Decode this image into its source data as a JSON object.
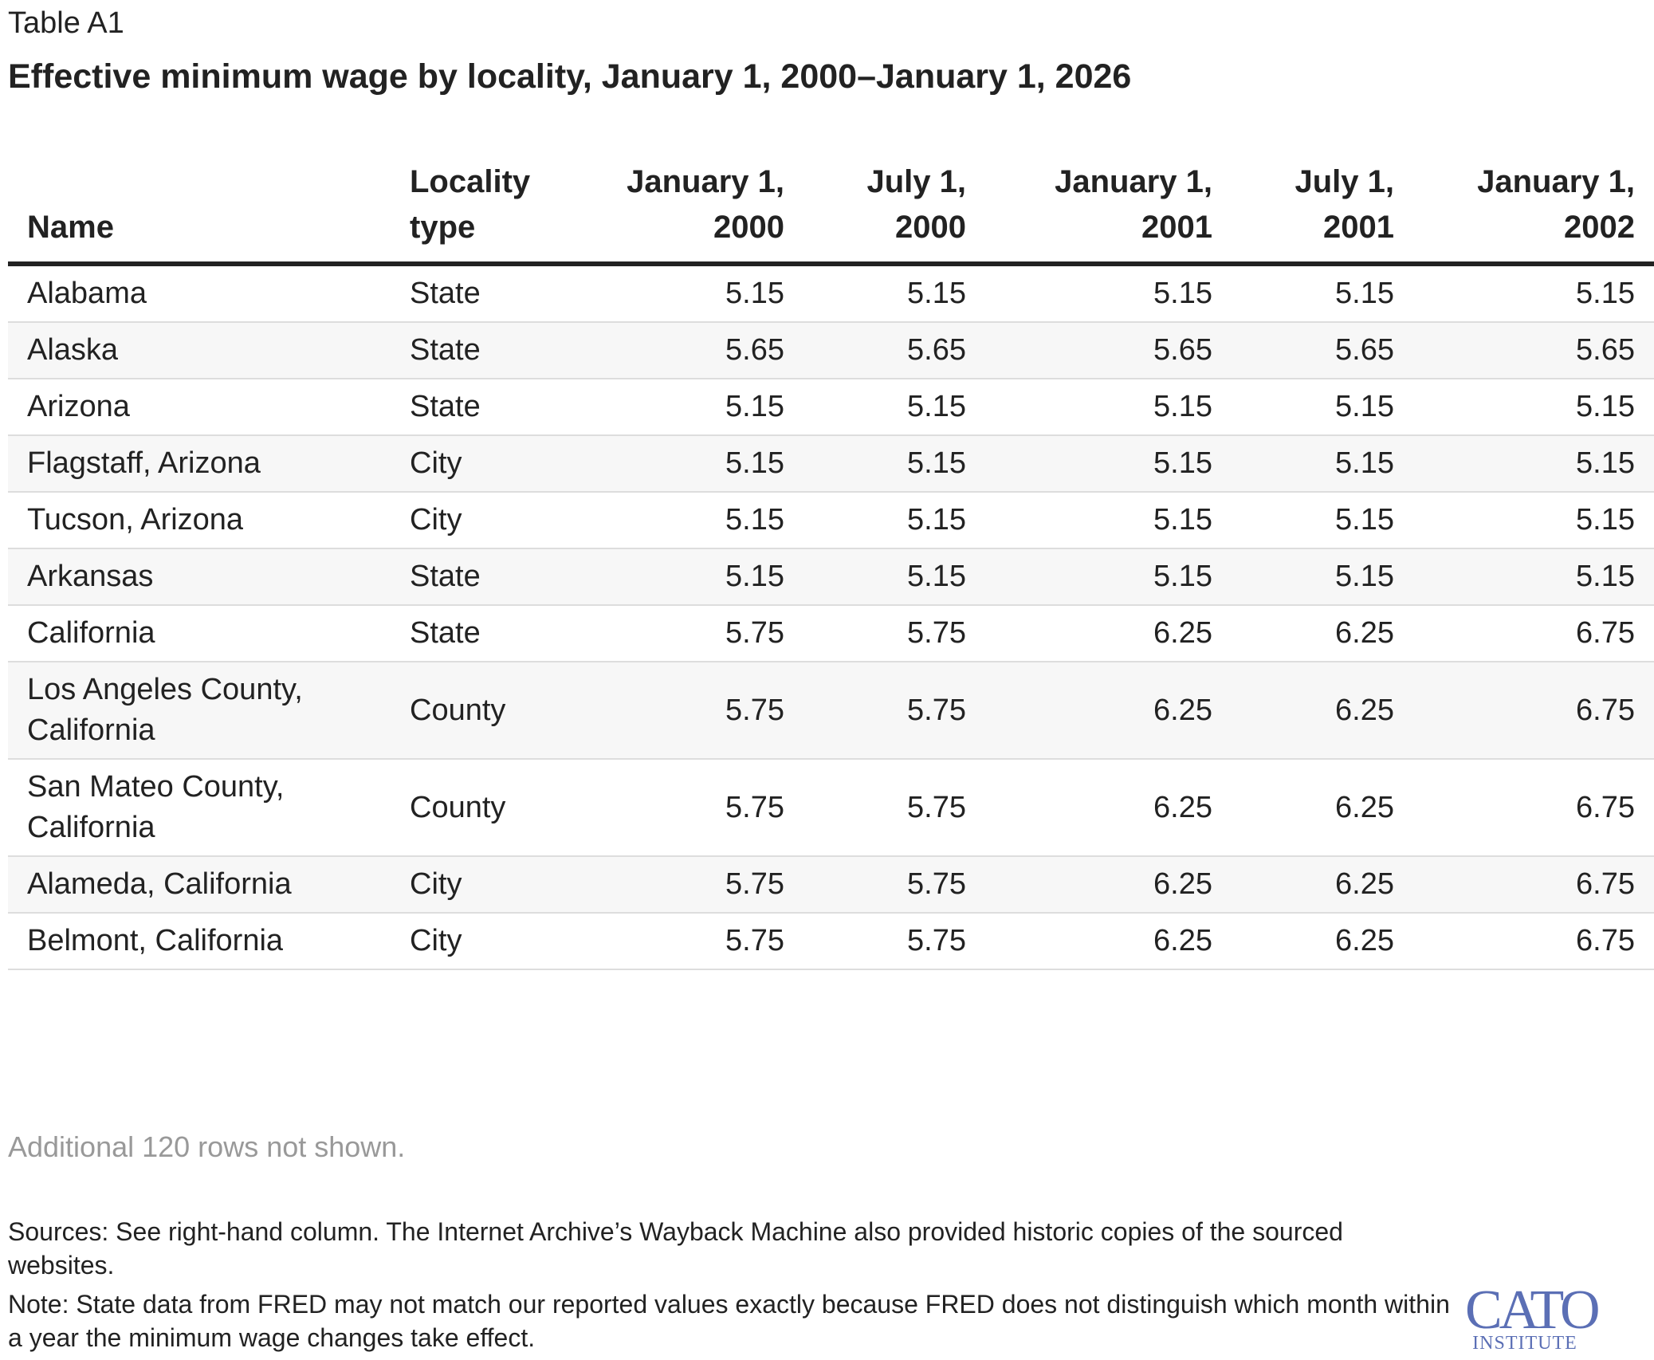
{
  "header": {
    "label": "Table A1",
    "title": "Effective minimum wage by locality, January 1, 2000–January 1, 2026"
  },
  "table": {
    "columns": [
      "Name",
      "Locality type",
      "January 1, 2000",
      "July 1, 2000",
      "January 1, 2001",
      "July 1, 2001",
      "January 1, 2002"
    ],
    "rows": [
      [
        "Alabama",
        "State",
        "5.15",
        "5.15",
        "5.15",
        "5.15",
        "5.15"
      ],
      [
        "Alaska",
        "State",
        "5.65",
        "5.65",
        "5.65",
        "5.65",
        "5.65"
      ],
      [
        "Arizona",
        "State",
        "5.15",
        "5.15",
        "5.15",
        "5.15",
        "5.15"
      ],
      [
        "Flagstaff, Arizona",
        "City",
        "5.15",
        "5.15",
        "5.15",
        "5.15",
        "5.15"
      ],
      [
        "Tucson, Arizona",
        "City",
        "5.15",
        "5.15",
        "5.15",
        "5.15",
        "5.15"
      ],
      [
        "Arkansas",
        "State",
        "5.15",
        "5.15",
        "5.15",
        "5.15",
        "5.15"
      ],
      [
        "California",
        "State",
        "5.75",
        "5.75",
        "6.25",
        "6.25",
        "6.75"
      ],
      [
        "Los Angeles County, California",
        "County",
        "5.75",
        "5.75",
        "6.25",
        "6.25",
        "6.75"
      ],
      [
        "San Mateo County, California",
        "County",
        "5.75",
        "5.75",
        "6.25",
        "6.25",
        "6.75"
      ],
      [
        "Alameda, California",
        "City",
        "5.75",
        "5.75",
        "6.25",
        "6.25",
        "6.75"
      ],
      [
        "Belmont, California",
        "City",
        "5.75",
        "5.75",
        "6.25",
        "6.25",
        "6.75"
      ]
    ],
    "more": "Additional 120 rows not shown."
  },
  "footer": {
    "sources": "Sources: See right-hand column. The Internet Archive’s Wayback Machine also provided historic copies of the sourced websites.",
    "note": "Note: State data from FRED may not match our reported values exactly because FRED does not distinguish which month within a year the minimum wage changes take effect.",
    "logo": {
      "name": "CATO",
      "sub": "INSTITUTE"
    }
  }
}
